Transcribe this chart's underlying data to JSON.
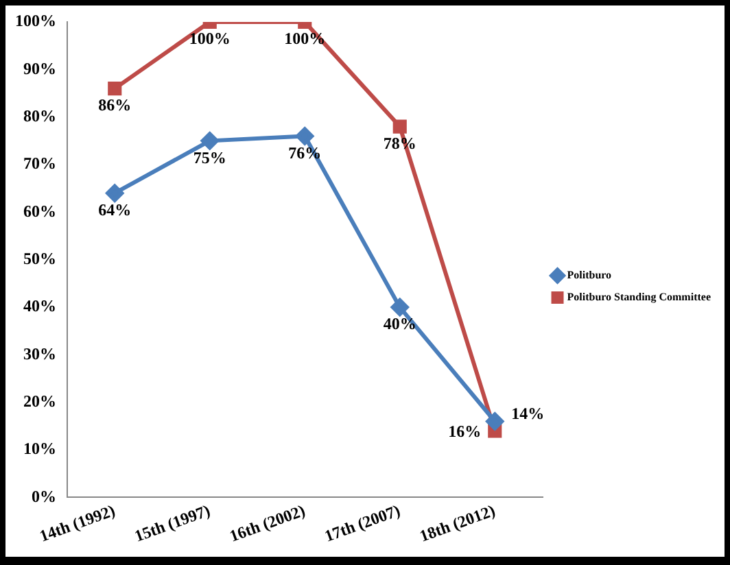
{
  "chart_data": {
    "type": "line",
    "categories": [
      "14th (1992)",
      "15th (1997)",
      "16th (2002)",
      "17th (2007)",
      "18th (2012)"
    ],
    "series": [
      {
        "name": "Politburo",
        "color": "#4a7ebb",
        "marker": "diamond",
        "values": [
          64,
          75,
          76,
          40,
          16
        ],
        "value_labels": [
          "64%",
          "75%",
          "76%",
          "40%",
          "16%"
        ]
      },
      {
        "name": "Politburo Standing Committee",
        "color": "#be4b48",
        "marker": "square",
        "values": [
          86,
          100,
          100,
          78,
          14
        ],
        "value_labels": [
          "86%",
          "100%",
          "100%",
          "78%",
          "14%"
        ]
      }
    ],
    "ylim": [
      0,
      100
    ],
    "yticks": [
      {
        "value": 0,
        "label": "0%"
      },
      {
        "value": 10,
        "label": "10%"
      },
      {
        "value": 20,
        "label": "20%"
      },
      {
        "value": 30,
        "label": "30%"
      },
      {
        "value": 40,
        "label": "40%"
      },
      {
        "value": 50,
        "label": "50%"
      },
      {
        "value": 60,
        "label": "60%"
      },
      {
        "value": 70,
        "label": "70%"
      },
      {
        "value": 80,
        "label": "80%"
      },
      {
        "value": 90,
        "label": "90%"
      },
      {
        "value": 100,
        "label": "100%"
      }
    ],
    "grid": false,
    "legend": "right",
    "line_style": "solid"
  }
}
